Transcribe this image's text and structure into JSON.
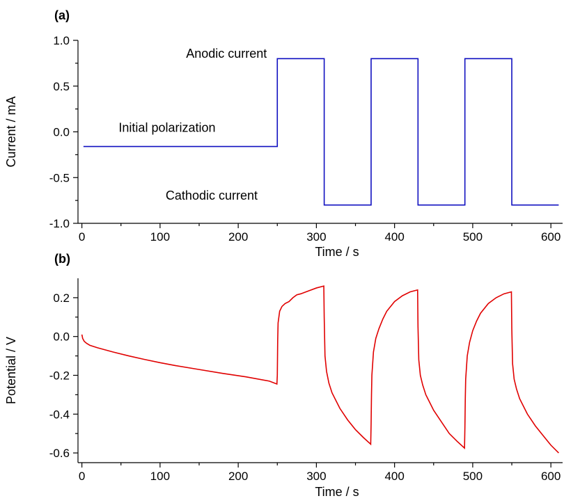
{
  "chart_data": [
    {
      "type": "line",
      "panel_label": "(a)",
      "xlabel": "Time / s",
      "ylabel": "Current / mA",
      "xlim": [
        -5,
        615
      ],
      "ylim": [
        -1.0,
        1.0
      ],
      "xticks": [
        0,
        100,
        200,
        300,
        400,
        500,
        600
      ],
      "xtick_labels": [
        "0",
        "100",
        "200",
        "300",
        "400",
        "500",
        "600"
      ],
      "yticks": [
        -1.0,
        -0.5,
        0.0,
        0.5,
        1.0
      ],
      "ytick_labels": [
        "-1.0",
        "-0.5",
        "0.0",
        "0.5",
        "1.0"
      ],
      "grid": false,
      "series": [
        {
          "color": "#1010c0",
          "x": [
            2,
            250,
            250,
            310,
            310,
            370,
            370,
            430,
            430,
            490,
            490,
            550,
            550,
            610
          ],
          "y": [
            -0.16,
            -0.16,
            0.8,
            0.8,
            -0.8,
            -0.8,
            0.8,
            0.8,
            -0.8,
            -0.8,
            0.8,
            0.8,
            -0.8,
            -0.8
          ]
        }
      ],
      "annotations": [
        {
          "text": "Anodic current",
          "x": 185,
          "y": 0.81
        },
        {
          "text": "Initial polarization",
          "x": 109,
          "y": 0.0
        },
        {
          "text": "Cathodic current",
          "x": 166,
          "y": -0.74
        }
      ]
    },
    {
      "type": "line",
      "panel_label": "(b)",
      "xlabel": "Time / s",
      "ylabel": "Potential / V",
      "xlim": [
        -5,
        615
      ],
      "ylim": [
        -0.65,
        0.3
      ],
      "xticks": [
        0,
        100,
        200,
        300,
        400,
        500,
        600
      ],
      "xtick_labels": [
        "0",
        "100",
        "200",
        "300",
        "400",
        "500",
        "600"
      ],
      "yticks": [
        -0.6,
        -0.4,
        -0.2,
        0.0,
        0.2
      ],
      "ytick_labels": [
        "-0.6",
        "-0.4",
        "-0.2",
        "0.0",
        "0.2"
      ],
      "grid": false,
      "series": [
        {
          "color": "#e00000",
          "x": [
            0,
            1,
            3,
            6,
            10,
            20,
            40,
            60,
            80,
            100,
            120,
            150,
            180,
            210,
            240,
            249.5,
            250,
            250.5,
            251,
            253,
            256,
            260,
            265,
            270,
            275,
            280,
            290,
            300,
            309.5,
            310,
            311,
            313,
            316,
            320,
            325,
            330,
            340,
            350,
            360,
            369.5,
            370,
            370.5,
            371,
            373,
            376,
            380,
            385,
            390,
            400,
            410,
            420,
            429.5,
            430,
            431,
            433,
            436,
            440,
            445,
            450,
            460,
            470,
            480,
            489.5,
            490,
            490.5,
            491,
            493,
            496,
            500,
            505,
            510,
            520,
            530,
            540,
            549.5,
            550,
            551,
            553,
            556,
            560,
            565,
            570,
            580,
            590,
            600,
            610
          ],
          "y": [
            0.01,
            -0.01,
            -0.025,
            -0.035,
            -0.045,
            -0.058,
            -0.08,
            -0.1,
            -0.118,
            -0.135,
            -0.15,
            -0.17,
            -0.19,
            -0.208,
            -0.23,
            -0.245,
            -0.2,
            -0.02,
            0.07,
            0.13,
            0.155,
            0.17,
            0.18,
            0.2,
            0.215,
            0.22,
            0.235,
            0.25,
            0.26,
            0.1,
            -0.1,
            -0.18,
            -0.24,
            -0.29,
            -0.33,
            -0.37,
            -0.43,
            -0.48,
            -0.52,
            -0.555,
            -0.45,
            -0.3,
            -0.2,
            -0.08,
            -0.01,
            0.04,
            0.09,
            0.13,
            0.18,
            0.21,
            0.23,
            0.24,
            0.05,
            -0.12,
            -0.2,
            -0.25,
            -0.3,
            -0.34,
            -0.38,
            -0.44,
            -0.5,
            -0.54,
            -0.575,
            -0.47,
            -0.32,
            -0.22,
            -0.1,
            -0.03,
            0.03,
            0.08,
            0.12,
            0.17,
            0.2,
            0.22,
            0.23,
            0.04,
            -0.14,
            -0.22,
            -0.27,
            -0.32,
            -0.36,
            -0.4,
            -0.46,
            -0.51,
            -0.56,
            -0.6
          ]
        }
      ],
      "annotations": []
    }
  ]
}
